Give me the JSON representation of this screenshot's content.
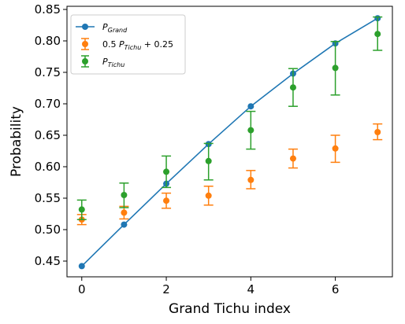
{
  "chart_data": {
    "type": "line",
    "xlabel": "Grand Tichu index",
    "ylabel": "Probability",
    "xlim": [
      -0.35,
      7.35
    ],
    "ylim": [
      0.425,
      0.855
    ],
    "x_ticks": [
      0,
      2,
      4,
      6
    ],
    "x_tick_labels": [
      "0",
      "2",
      "4",
      "6"
    ],
    "y_ticks": [
      0.45,
      0.5,
      0.55,
      0.6,
      0.65,
      0.7,
      0.75,
      0.8,
      0.85
    ],
    "y_tick_labels": [
      "0.45",
      "0.50",
      "0.55",
      "0.60",
      "0.65",
      "0.70",
      "0.75",
      "0.80",
      "0.85"
    ],
    "grid": false,
    "legend_position": "top-left",
    "series": [
      {
        "name": "P_Grand",
        "legend_main": "P",
        "legend_sub": "Grand",
        "legend_prefix": "",
        "legend_suffix": "",
        "color": "#1f77b4",
        "style": "line-marker",
        "x": [
          0,
          1,
          2,
          3,
          4,
          5,
          6,
          7
        ],
        "y": [
          0.442,
          0.508,
          0.573,
          0.636,
          0.696,
          0.748,
          0.796,
          0.836
        ],
        "err_low": [
          0,
          0,
          0,
          0,
          0,
          0,
          0,
          0
        ],
        "err_high": [
          0,
          0,
          0,
          0,
          0,
          0,
          0,
          0
        ]
      },
      {
        "name": "0.5 P_Tichu + 0.25",
        "legend_main": "P",
        "legend_sub": "Tichu",
        "legend_prefix": "0.5 ",
        "legend_suffix": " + 0.25",
        "color": "#ff7f0e",
        "style": "errorbar",
        "x": [
          0,
          1,
          2,
          3,
          4,
          5,
          6,
          7
        ],
        "y": [
          0.516,
          0.527,
          0.546,
          0.554,
          0.579,
          0.613,
          0.629,
          0.655
        ],
        "err_low": [
          0.508,
          0.517,
          0.534,
          0.539,
          0.565,
          0.598,
          0.607,
          0.643
        ],
        "err_high": [
          0.524,
          0.537,
          0.558,
          0.569,
          0.594,
          0.628,
          0.65,
          0.668
        ]
      },
      {
        "name": "P_Tichu",
        "legend_main": "P",
        "legend_sub": "Tichu",
        "legend_prefix": "",
        "legend_suffix": "",
        "color": "#2ca02c",
        "style": "errorbar",
        "x": [
          0,
          1,
          2,
          3,
          4,
          5,
          6,
          7
        ],
        "y": [
          0.532,
          0.555,
          0.592,
          0.609,
          0.658,
          0.726,
          0.757,
          0.811
        ],
        "err_low": [
          0.516,
          0.535,
          0.567,
          0.579,
          0.628,
          0.696,
          0.714,
          0.785
        ],
        "err_high": [
          0.547,
          0.574,
          0.617,
          0.637,
          0.688,
          0.756,
          0.799,
          0.838
        ]
      }
    ]
  }
}
